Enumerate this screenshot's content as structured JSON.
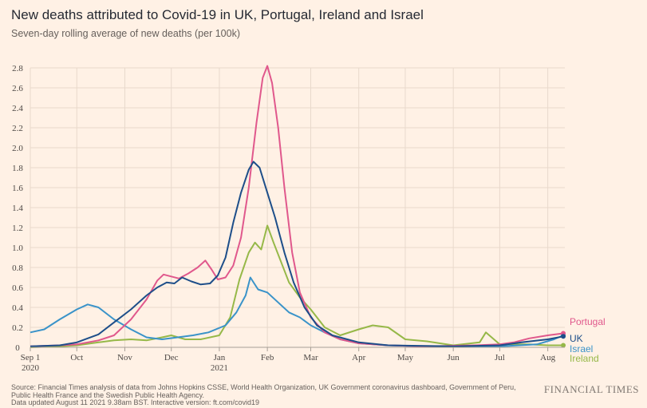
{
  "chart_data": {
    "type": "line",
    "title": "New deaths attributed to Covid-19 in UK, Portugal, Ireland and Israel",
    "subtitle": "Seven-day rolling average of new deaths (per 100k)",
    "x_domain": [
      "2020-09-01",
      "2021-08-12"
    ],
    "ylim": [
      0,
      2.8
    ],
    "y_ticks": [
      "0",
      "0.2",
      "0.4",
      "0.6",
      "0.8",
      "1.0",
      "1.2",
      "1.4",
      "1.6",
      "1.8",
      "2.0",
      "2.2",
      "2.4",
      "2.6",
      "2.8"
    ],
    "x_ticks": [
      {
        "date": "2020-09-01",
        "label": "Sep 1",
        "sub": "2020"
      },
      {
        "date": "2020-10-01",
        "label": "Oct",
        "sub": ""
      },
      {
        "date": "2020-11-01",
        "label": "Nov",
        "sub": ""
      },
      {
        "date": "2020-12-01",
        "label": "Dec",
        "sub": ""
      },
      {
        "date": "2021-01-01",
        "label": "Jan",
        "sub": "2021"
      },
      {
        "date": "2021-02-01",
        "label": "Feb",
        "sub": ""
      },
      {
        "date": "2021-03-01",
        "label": "Mar",
        "sub": ""
      },
      {
        "date": "2021-04-01",
        "label": "Apr",
        "sub": ""
      },
      {
        "date": "2021-05-01",
        "label": "May",
        "sub": ""
      },
      {
        "date": "2021-06-01",
        "label": "Jun",
        "sub": ""
      },
      {
        "date": "2021-07-01",
        "label": "Jul",
        "sub": ""
      },
      {
        "date": "2021-08-01",
        "label": "Aug",
        "sub": ""
      }
    ],
    "grid": true,
    "series": [
      {
        "name": "Portugal",
        "color": "#e0588c",
        "points": [
          [
            "2020-09-01",
            0.01
          ],
          [
            "2020-09-20",
            0.02
          ],
          [
            "2020-10-01",
            0.03
          ],
          [
            "2020-10-15",
            0.07
          ],
          [
            "2020-10-25",
            0.12
          ],
          [
            "2020-11-05",
            0.28
          ],
          [
            "2020-11-15",
            0.48
          ],
          [
            "2020-11-22",
            0.67
          ],
          [
            "2020-11-26",
            0.73
          ],
          [
            "2020-12-01",
            0.71
          ],
          [
            "2020-12-06",
            0.69
          ],
          [
            "2020-12-12",
            0.74
          ],
          [
            "2020-12-18",
            0.8
          ],
          [
            "2020-12-23",
            0.87
          ],
          [
            "2020-12-27",
            0.78
          ],
          [
            "2020-12-31",
            0.68
          ],
          [
            "2021-01-05",
            0.7
          ],
          [
            "2021-01-10",
            0.82
          ],
          [
            "2021-01-15",
            1.1
          ],
          [
            "2021-01-20",
            1.6
          ],
          [
            "2021-01-25",
            2.25
          ],
          [
            "2021-01-29",
            2.7
          ],
          [
            "2021-02-01",
            2.82
          ],
          [
            "2021-02-04",
            2.65
          ],
          [
            "2021-02-08",
            2.2
          ],
          [
            "2021-02-12",
            1.6
          ],
          [
            "2021-02-17",
            0.95
          ],
          [
            "2021-02-22",
            0.55
          ],
          [
            "2021-03-01",
            0.3
          ],
          [
            "2021-03-10",
            0.15
          ],
          [
            "2021-03-20",
            0.08
          ],
          [
            "2021-04-01",
            0.04
          ],
          [
            "2021-04-20",
            0.02
          ],
          [
            "2021-05-15",
            0.01
          ],
          [
            "2021-06-15",
            0.02
          ],
          [
            "2021-07-01",
            0.03
          ],
          [
            "2021-07-10",
            0.05
          ],
          [
            "2021-07-20",
            0.09
          ],
          [
            "2021-08-01",
            0.12
          ],
          [
            "2021-08-11",
            0.14
          ]
        ]
      },
      {
        "name": "UK",
        "color": "#1d4e89",
        "points": [
          [
            "2020-09-01",
            0.01
          ],
          [
            "2020-09-20",
            0.02
          ],
          [
            "2020-10-01",
            0.05
          ],
          [
            "2020-10-15",
            0.13
          ],
          [
            "2020-10-25",
            0.25
          ],
          [
            "2020-11-05",
            0.38
          ],
          [
            "2020-11-15",
            0.52
          ],
          [
            "2020-11-22",
            0.6
          ],
          [
            "2020-11-28",
            0.65
          ],
          [
            "2020-12-03",
            0.64
          ],
          [
            "2020-12-08",
            0.7
          ],
          [
            "2020-12-14",
            0.66
          ],
          [
            "2020-12-20",
            0.63
          ],
          [
            "2020-12-26",
            0.64
          ],
          [
            "2020-12-31",
            0.72
          ],
          [
            "2021-01-05",
            0.9
          ],
          [
            "2021-01-10",
            1.25
          ],
          [
            "2021-01-15",
            1.55
          ],
          [
            "2021-01-20",
            1.78
          ],
          [
            "2021-01-23",
            1.86
          ],
          [
            "2021-01-27",
            1.8
          ],
          [
            "2021-02-01",
            1.55
          ],
          [
            "2021-02-06",
            1.3
          ],
          [
            "2021-02-12",
            0.95
          ],
          [
            "2021-02-18",
            0.65
          ],
          [
            "2021-02-25",
            0.4
          ],
          [
            "2021-03-05",
            0.22
          ],
          [
            "2021-03-15",
            0.12
          ],
          [
            "2021-04-01",
            0.05
          ],
          [
            "2021-04-20",
            0.02
          ],
          [
            "2021-06-01",
            0.01
          ],
          [
            "2021-07-01",
            0.02
          ],
          [
            "2021-07-15",
            0.05
          ],
          [
            "2021-08-01",
            0.08
          ],
          [
            "2021-08-11",
            0.11
          ]
        ]
      },
      {
        "name": "Israel",
        "color": "#3a93c9",
        "points": [
          [
            "2020-09-01",
            0.15
          ],
          [
            "2020-09-10",
            0.18
          ],
          [
            "2020-09-20",
            0.28
          ],
          [
            "2020-10-01",
            0.38
          ],
          [
            "2020-10-08",
            0.43
          ],
          [
            "2020-10-15",
            0.4
          ],
          [
            "2020-10-25",
            0.28
          ],
          [
            "2020-11-05",
            0.18
          ],
          [
            "2020-11-15",
            0.1
          ],
          [
            "2020-11-25",
            0.08
          ],
          [
            "2020-12-05",
            0.1
          ],
          [
            "2020-12-15",
            0.12
          ],
          [
            "2020-12-25",
            0.15
          ],
          [
            "2021-01-05",
            0.22
          ],
          [
            "2021-01-12",
            0.35
          ],
          [
            "2021-01-18",
            0.52
          ],
          [
            "2021-01-21",
            0.7
          ],
          [
            "2021-01-26",
            0.58
          ],
          [
            "2021-02-01",
            0.55
          ],
          [
            "2021-02-08",
            0.45
          ],
          [
            "2021-02-15",
            0.35
          ],
          [
            "2021-02-22",
            0.3
          ],
          [
            "2021-03-01",
            0.22
          ],
          [
            "2021-03-10",
            0.15
          ],
          [
            "2021-03-20",
            0.08
          ],
          [
            "2021-04-01",
            0.04
          ],
          [
            "2021-04-20",
            0.02
          ],
          [
            "2021-05-15",
            0.01
          ],
          [
            "2021-07-01",
            0.01
          ],
          [
            "2021-07-25",
            0.03
          ],
          [
            "2021-08-05",
            0.08
          ],
          [
            "2021-08-11",
            0.12
          ]
        ]
      },
      {
        "name": "Ireland",
        "color": "#96b848",
        "points": [
          [
            "2020-09-01",
            0.0
          ],
          [
            "2020-09-20",
            0.01
          ],
          [
            "2020-10-01",
            0.02
          ],
          [
            "2020-10-15",
            0.05
          ],
          [
            "2020-10-25",
            0.07
          ],
          [
            "2020-11-05",
            0.08
          ],
          [
            "2020-11-15",
            0.07
          ],
          [
            "2020-11-25",
            0.1
          ],
          [
            "2020-12-01",
            0.12
          ],
          [
            "2020-12-10",
            0.08
          ],
          [
            "2020-12-20",
            0.08
          ],
          [
            "2021-01-01",
            0.12
          ],
          [
            "2021-01-08",
            0.3
          ],
          [
            "2021-01-14",
            0.68
          ],
          [
            "2021-01-20",
            0.95
          ],
          [
            "2021-01-24",
            1.05
          ],
          [
            "2021-01-28",
            0.98
          ],
          [
            "2021-02-01",
            1.22
          ],
          [
            "2021-02-05",
            1.05
          ],
          [
            "2021-02-10",
            0.85
          ],
          [
            "2021-02-15",
            0.65
          ],
          [
            "2021-02-22",
            0.5
          ],
          [
            "2021-03-01",
            0.38
          ],
          [
            "2021-03-10",
            0.2
          ],
          [
            "2021-03-20",
            0.12
          ],
          [
            "2021-04-01",
            0.18
          ],
          [
            "2021-04-10",
            0.22
          ],
          [
            "2021-04-20",
            0.2
          ],
          [
            "2021-05-01",
            0.08
          ],
          [
            "2021-05-15",
            0.06
          ],
          [
            "2021-06-01",
            0.02
          ],
          [
            "2021-06-18",
            0.05
          ],
          [
            "2021-06-22",
            0.15
          ],
          [
            "2021-07-01",
            0.03
          ],
          [
            "2021-07-20",
            0.03
          ],
          [
            "2021-08-01",
            0.02
          ],
          [
            "2021-08-11",
            0.02
          ]
        ]
      }
    ],
    "legend": [
      {
        "label": "Portugal",
        "color": "#e0588c"
      },
      {
        "label": "UK",
        "color": "#1d4e89"
      },
      {
        "label": "Israel",
        "color": "#3a93c9"
      },
      {
        "label": "Ireland",
        "color": "#96b848"
      }
    ]
  },
  "source_text": "Source: Financial Times analysis of data from Johns Hopkins CSSE, World Health Organization, UK Government coronavirus dashboard, Government of Peru, Public Health France and the Swedish Public Health Agency.",
  "updated_text": "Data updated August 11 2021 9.38am BST. Interactive version: ft.com/covid19",
  "brand": "FINANCIAL TIMES"
}
